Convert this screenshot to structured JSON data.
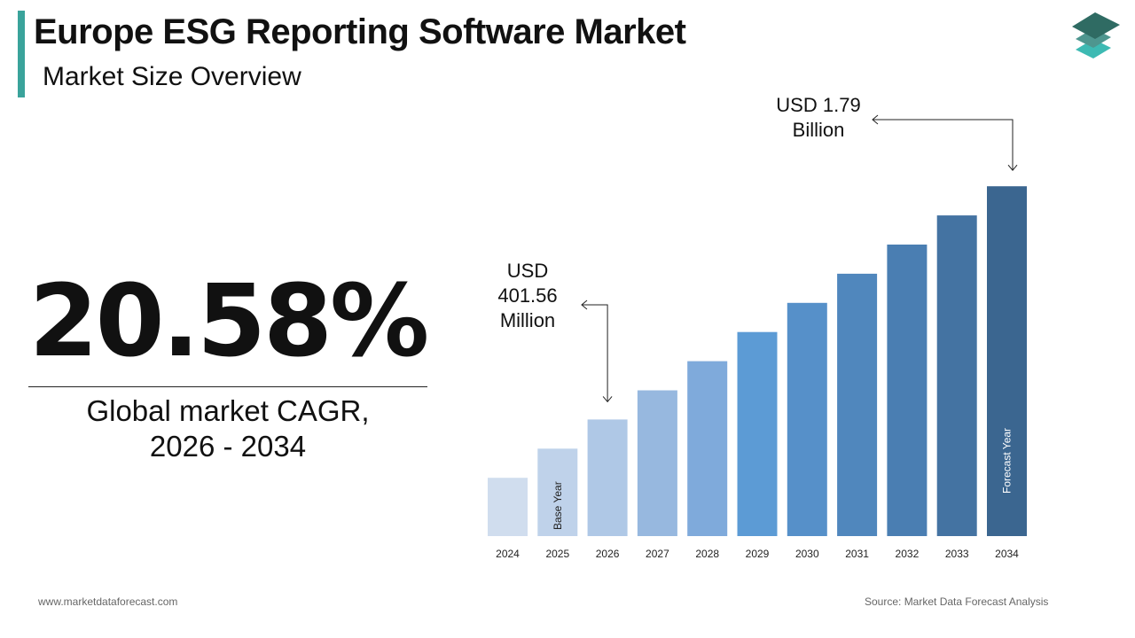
{
  "header": {
    "title": "Europe ESG Reporting Software Market",
    "subtitle": "Market Size Overview"
  },
  "logo": {
    "icon": "stacked-layers-logo",
    "colors": [
      "#2f6b63",
      "#4e968f",
      "#3dbab3"
    ]
  },
  "kpi": {
    "value": "20.58%",
    "label_line1": "Global market CAGR,",
    "label_line2": "2026 - 2034"
  },
  "chart_data": {
    "type": "bar",
    "categories": [
      "2024",
      "2025",
      "2026",
      "2027",
      "2028",
      "2029",
      "2030",
      "2031",
      "2032",
      "2033",
      "2034"
    ],
    "bar_levels": [
      2,
      3,
      4,
      5,
      6,
      7,
      8,
      9,
      10,
      11,
      12
    ],
    "values_usd_million": [
      null,
      null,
      401.56,
      null,
      null,
      null,
      null,
      null,
      null,
      null,
      1790
    ],
    "colors": [
      "#d0ddee",
      "#bfd2ea",
      "#afc8e6",
      "#97b8df",
      "#7faadb",
      "#5c9bd5",
      "#5690c9",
      "#5087bd",
      "#4a7eb2",
      "#4473a2",
      "#3b6690"
    ],
    "bar_labels": {
      "2025": "Base Year",
      "2034": "Forecast Year"
    },
    "annotations": [
      {
        "category": "2026",
        "lines": [
          "USD",
          "401.56",
          "Million"
        ]
      },
      {
        "category": "2034",
        "lines": [
          "USD 1.79",
          "Billion"
        ]
      }
    ]
  },
  "footer": {
    "website": "www.marketdataforecast.com",
    "source": "Source: Market Data Forecast Analysis"
  }
}
